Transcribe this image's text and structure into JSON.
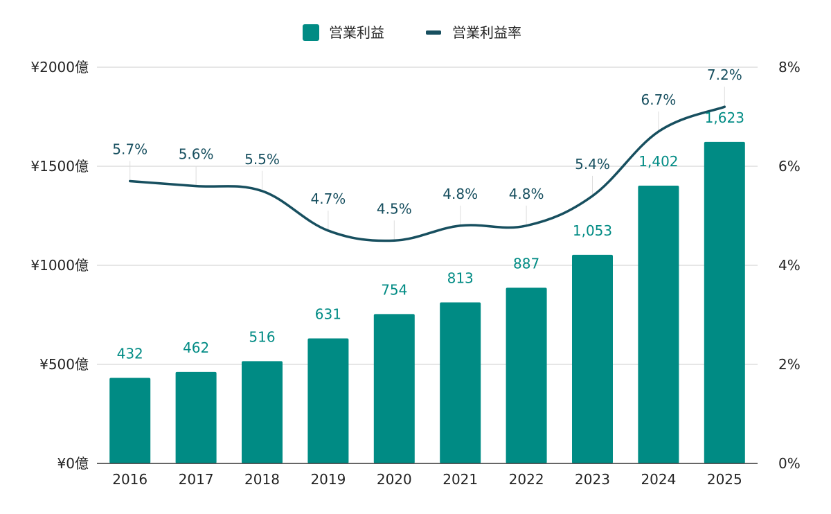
{
  "chart_data": {
    "type": "bar",
    "categories": [
      "2016",
      "2017",
      "2018",
      "2019",
      "2020",
      "2021",
      "2022",
      "2023",
      "2024",
      "2025"
    ],
    "series": [
      {
        "name": "営業利益",
        "kind": "bar",
        "axis": "left",
        "color": "#008B84",
        "values": [
          432,
          462,
          516,
          631,
          754,
          813,
          887,
          1053,
          1402,
          1623
        ],
        "labels": [
          "432",
          "462",
          "516",
          "631",
          "754",
          "813",
          "887",
          "1,053",
          "1,402",
          "1,623"
        ]
      },
      {
        "name": "営業利益率",
        "kind": "line",
        "axis": "right",
        "color": "#174F5F",
        "values": [
          5.7,
          5.6,
          5.5,
          4.7,
          4.5,
          4.8,
          4.8,
          5.4,
          6.7,
          7.2
        ],
        "labels": [
          "5.7%",
          "5.6%",
          "5.5%",
          "4.7%",
          "4.5%",
          "4.8%",
          "4.8%",
          "5.4%",
          "6.7%",
          "7.2%"
        ]
      }
    ],
    "left_axis": {
      "range": [
        0,
        2000
      ],
      "ticks": [
        0,
        500,
        1000,
        1500,
        2000
      ],
      "tick_labels": [
        "¥0億",
        "¥500億",
        "¥1000億",
        "¥1500億",
        "¥2000億"
      ]
    },
    "right_axis": {
      "range": [
        0,
        8
      ],
      "ticks": [
        0,
        2,
        4,
        6,
        8
      ],
      "tick_labels": [
        "0%",
        "2%",
        "4%",
        "6%",
        "8%"
      ]
    },
    "grid": true,
    "legend": "top-center"
  }
}
